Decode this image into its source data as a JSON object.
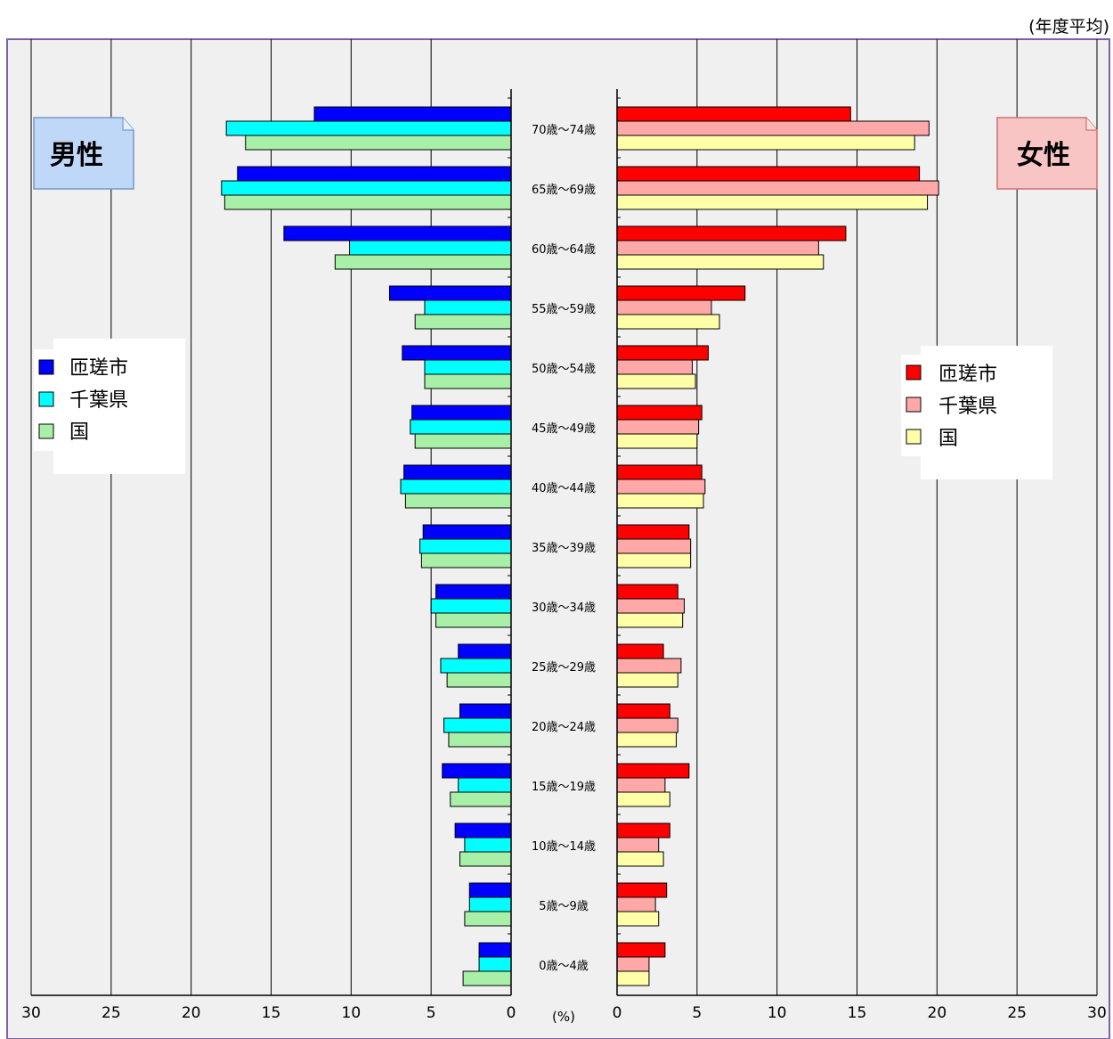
{
  "header_note": "(年度平均)",
  "panels": {
    "male_label": "男性",
    "female_label": "女性"
  },
  "center_unit": "(%)",
  "legend": {
    "male": [
      {
        "name": "匝瑳市",
        "color": "#0000ff"
      },
      {
        "name": "千葉県",
        "color": "#00ffff"
      },
      {
        "name": "国",
        "color": "#a8f0a8"
      }
    ],
    "female": [
      {
        "name": "匝瑳市",
        "color": "#ff0000"
      },
      {
        "name": "千葉県",
        "color": "#ffa8a8"
      },
      {
        "name": "国",
        "color": "#ffffa8"
      }
    ]
  },
  "chart_data": {
    "type": "bar",
    "orientation": "horizontal-population-pyramid",
    "categories": [
      "0歳～4歳",
      "5歳～9歳",
      "10歳～14歳",
      "15歳～19歳",
      "20歳～24歳",
      "25歳～29歳",
      "30歳～34歳",
      "35歳～39歳",
      "40歳～44歳",
      "45歳～49歳",
      "50歳～54歳",
      "55歳～59歳",
      "60歳～64歳",
      "65歳～69歳",
      "70歳～74歳"
    ],
    "xlim": [
      0,
      30
    ],
    "ticks": [
      "0",
      "5",
      "10",
      "15",
      "20",
      "25",
      "30"
    ],
    "male": {
      "series": [
        {
          "name": "匝瑳市",
          "values": [
            2.0,
            2.6,
            3.5,
            4.3,
            3.2,
            3.3,
            4.7,
            5.5,
            6.7,
            6.2,
            6.8,
            7.6,
            14.2,
            17.1,
            12.3
          ]
        },
        {
          "name": "千葉県",
          "values": [
            2.0,
            2.6,
            2.9,
            3.3,
            4.2,
            4.4,
            5.0,
            5.7,
            6.9,
            6.3,
            5.4,
            5.4,
            10.1,
            18.1,
            17.8
          ]
        },
        {
          "name": "国",
          "values": [
            3.0,
            2.9,
            3.2,
            3.8,
            3.9,
            4.0,
            4.7,
            5.6,
            6.6,
            6.0,
            5.4,
            6.0,
            11.0,
            17.9,
            16.6
          ]
        }
      ]
    },
    "female": {
      "series": [
        {
          "name": "匝瑳市",
          "values": [
            3.0,
            3.1,
            3.3,
            4.5,
            3.3,
            2.9,
            3.8,
            4.5,
            5.3,
            5.3,
            5.7,
            8.0,
            14.3,
            18.9,
            14.6
          ]
        },
        {
          "name": "千葉県",
          "values": [
            2.0,
            2.4,
            2.6,
            3.0,
            3.8,
            4.0,
            4.2,
            4.6,
            5.5,
            5.1,
            4.7,
            5.9,
            12.6,
            20.1,
            19.5
          ]
        },
        {
          "name": "国",
          "values": [
            2.0,
            2.6,
            2.9,
            3.3,
            3.7,
            3.8,
            4.1,
            4.6,
            5.4,
            5.0,
            4.9,
            6.4,
            12.9,
            19.4,
            18.6
          ]
        }
      ]
    }
  }
}
